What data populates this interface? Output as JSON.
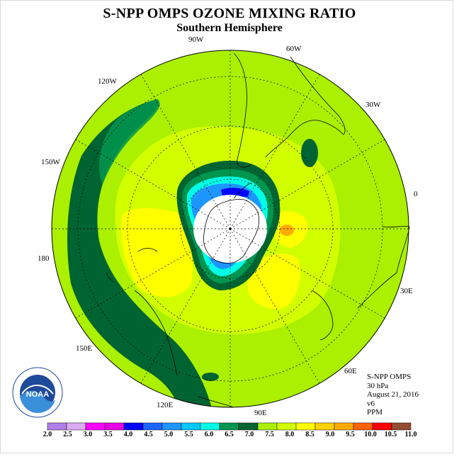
{
  "title": "S-NPP OMPS OZONE MIXING RATIO",
  "subtitle": "Southern Hemisphere",
  "longitude_labels": [
    "90W",
    "60W",
    "120W",
    "30W",
    "150W",
    "0",
    "180",
    "30E",
    "150E",
    "60E",
    "120E",
    "90E"
  ],
  "info": {
    "instrument": "S-NPP OMPS",
    "level": "30 hPa",
    "date": "August 21, 2016",
    "version": "v6",
    "units": "PPM"
  },
  "logo_text": "NOAA",
  "colorbar": {
    "labels": [
      "2.0",
      "2.5",
      "3.0",
      "3.5",
      "4.0",
      "4.5",
      "5.0",
      "5.5",
      "6.0",
      "6.5",
      "7.0",
      "7.5",
      "8.0",
      "8.5",
      "9.0",
      "9.5",
      "10.0",
      "10.5",
      "11.0"
    ],
    "colors": [
      "#b07ee8",
      "#dcaaf0",
      "#ff00ff",
      "#e600e6",
      "#0000ff",
      "#1e64ff",
      "#1e96ff",
      "#00c8ff",
      "#00ffe6",
      "#009650",
      "#006432",
      "#aaf000",
      "#d2ff00",
      "#ffff00",
      "#ffd200",
      "#ffaa00",
      "#ff6400",
      "#ff0000",
      "#964b32"
    ]
  },
  "colors": {
    "outer_ring": "#aaf000",
    "mid": "#d2ff00",
    "high": "#ffff00",
    "dark_band": "#006432",
    "green_band": "#009650",
    "light_cyan": "#00ffe6",
    "cyan": "#00c8ff",
    "blue": "#1e96ff",
    "deep_blue": "#0000ff",
    "orange": "#ffaa00"
  }
}
